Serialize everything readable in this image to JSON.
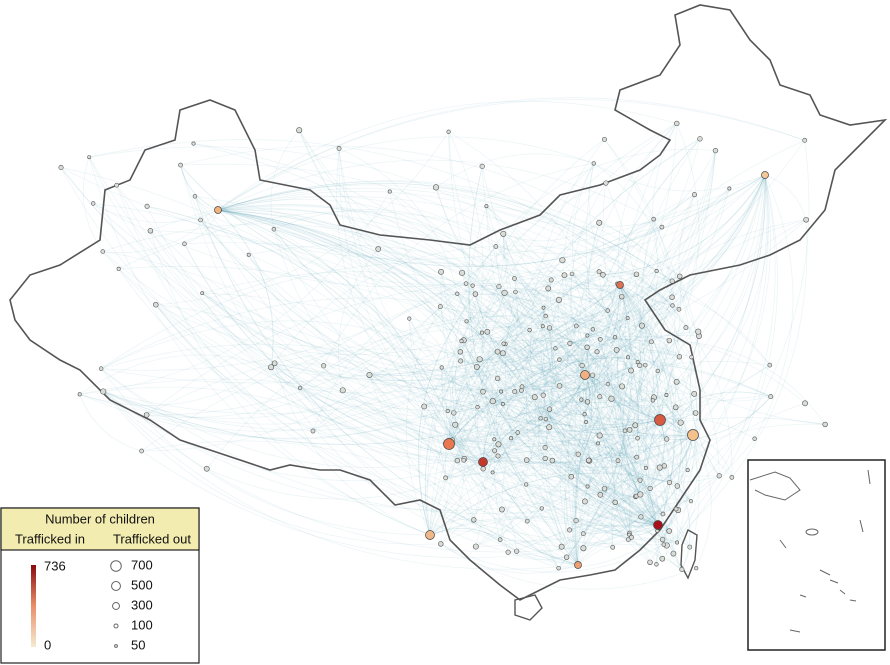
{
  "legend": {
    "title": "Number of children",
    "in_label": "Trafficked in",
    "out_label": "Trafficked out",
    "color_scale": {
      "max": 736,
      "min": 0
    },
    "size_scale": [
      700,
      500,
      300,
      100,
      50
    ]
  }
}
